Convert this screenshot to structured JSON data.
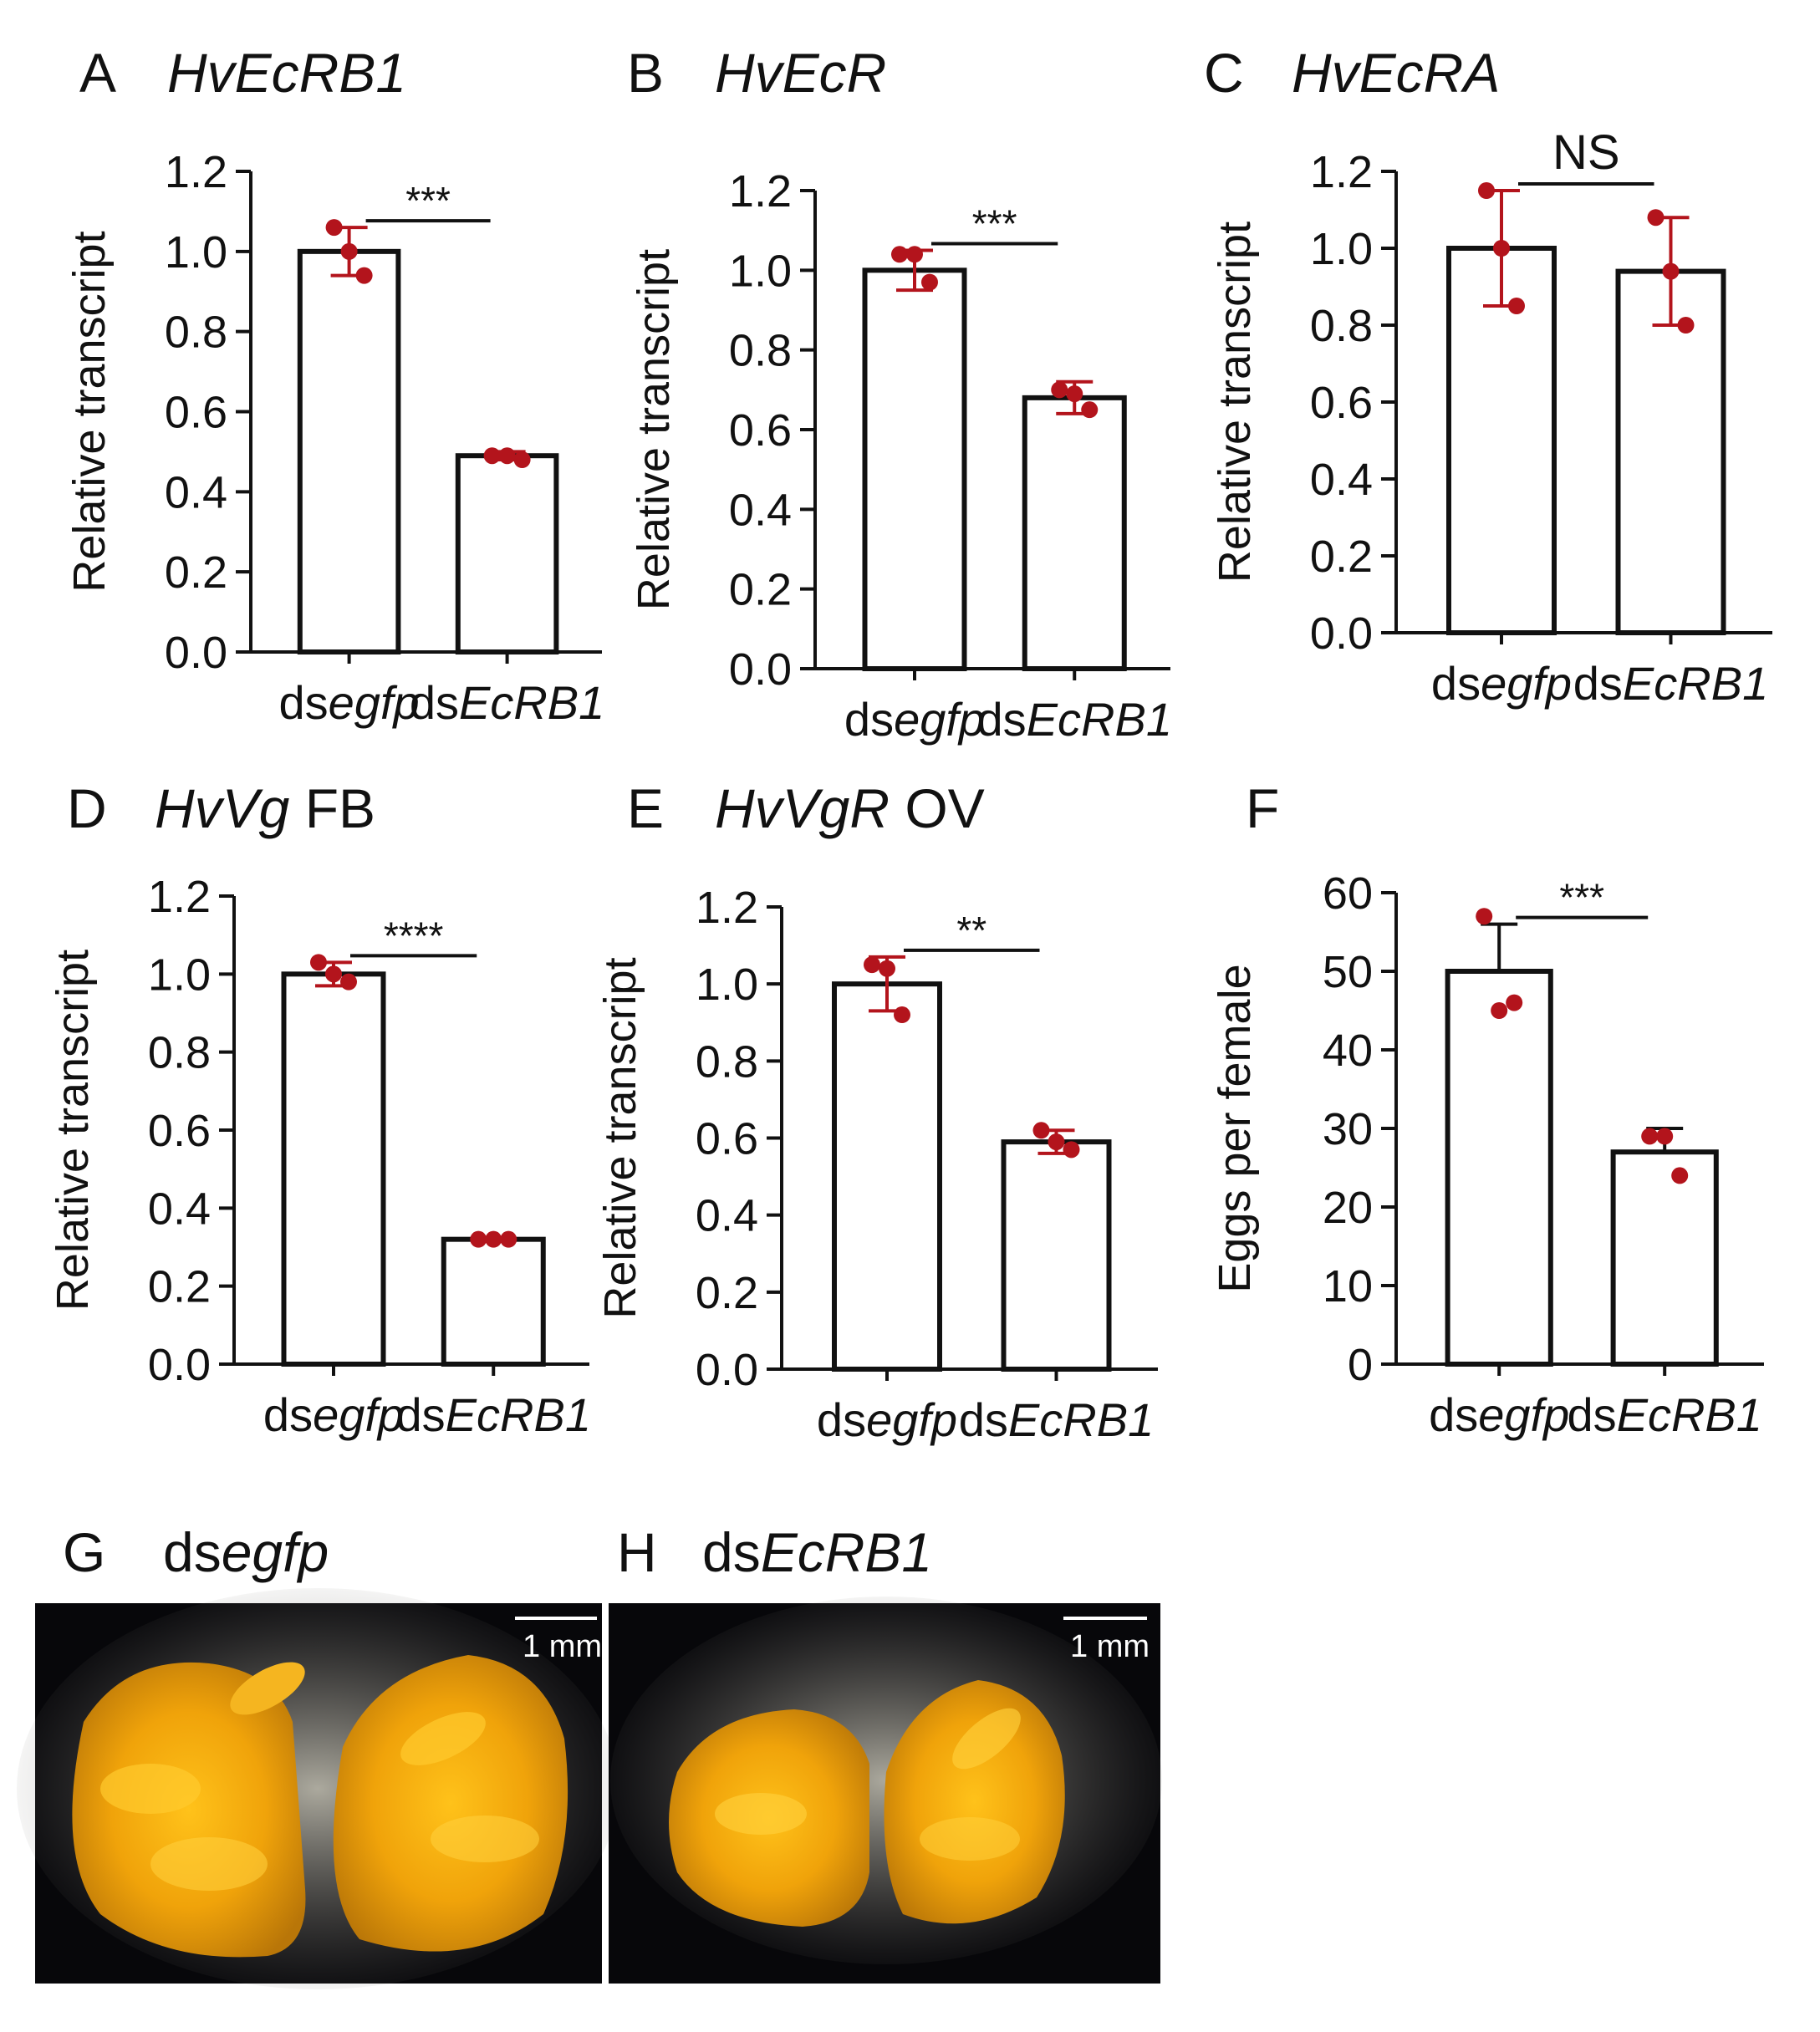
{
  "colors": {
    "point": "#b3141c",
    "bar_fill": "#ffffff",
    "bar_stroke": "#111111",
    "photo_bg": "#07070a",
    "ovary": "#f2a70c"
  },
  "chart_data": [
    {
      "panel": "A",
      "gene": "HvEcRB1",
      "gene_suffix": "",
      "type": "bar",
      "ylabel": "Relative transcript",
      "ylim": [
        0,
        1.2
      ],
      "yticks": [
        "0.0",
        "0.2",
        "0.4",
        "0.6",
        "0.8",
        "1.0",
        "1.2"
      ],
      "categories": [
        {
          "prefix": "ds",
          "italic": "egfp"
        },
        {
          "prefix": "ds",
          "italic": "EcRB1"
        }
      ],
      "values": [
        1.0,
        0.49
      ],
      "errors": [
        0.06,
        0.01
      ],
      "points": [
        [
          1.06,
          1.0,
          0.94
        ],
        [
          0.49,
          0.49,
          0.48
        ]
      ],
      "significance": "***"
    },
    {
      "panel": "B",
      "gene": "HvEcR",
      "gene_suffix": "",
      "type": "bar",
      "ylabel": "Relative transcript",
      "ylim": [
        0,
        1.2
      ],
      "yticks": [
        "0.0",
        "0.2",
        "0.4",
        "0.6",
        "0.8",
        "1.0",
        "1.2"
      ],
      "categories": [
        {
          "prefix": "ds",
          "italic": "egfp"
        },
        {
          "prefix": "ds",
          "italic": "EcRB1"
        }
      ],
      "values": [
        1.0,
        0.68
      ],
      "errors": [
        0.05,
        0.04
      ],
      "points": [
        [
          1.04,
          1.04,
          0.97
        ],
        [
          0.7,
          0.69,
          0.65
        ]
      ],
      "significance": "***"
    },
    {
      "panel": "C",
      "gene": "HvEcRA",
      "gene_suffix": "",
      "type": "bar",
      "ylabel": "Relative transcript",
      "ylim": [
        0,
        1.2
      ],
      "yticks": [
        "0.0",
        "0.2",
        "0.4",
        "0.6",
        "0.8",
        "1.0",
        "1.2"
      ],
      "categories": [
        {
          "prefix": "ds",
          "italic": "egfp"
        },
        {
          "prefix": "ds",
          "italic": "EcRB1"
        }
      ],
      "values": [
        1.0,
        0.94
      ],
      "errors": [
        0.15,
        0.14
      ],
      "points": [
        [
          1.15,
          1.0,
          0.85
        ],
        [
          1.08,
          0.94,
          0.8
        ]
      ],
      "significance": "NS"
    },
    {
      "panel": "D",
      "gene": "HvVg",
      "gene_suffix": "FB",
      "type": "bar",
      "ylabel": "Relative transcript",
      "ylim": [
        0,
        1.2
      ],
      "yticks": [
        "0.0",
        "0.2",
        "0.4",
        "0.6",
        "0.8",
        "1.0",
        "1.2"
      ],
      "categories": [
        {
          "prefix": "ds",
          "italic": "egfp"
        },
        {
          "prefix": "ds",
          "italic": "EcRB1"
        }
      ],
      "values": [
        1.0,
        0.32
      ],
      "errors": [
        0.03,
        0.005
      ],
      "points": [
        [
          1.03,
          1.0,
          0.98
        ],
        [
          0.32,
          0.32,
          0.32
        ]
      ],
      "significance": "****"
    },
    {
      "panel": "E",
      "gene": "HvVgR",
      "gene_suffix": "OV",
      "type": "bar",
      "ylabel": "Relative transcript",
      "ylim": [
        0,
        1.2
      ],
      "yticks": [
        "0.0",
        "0.2",
        "0.4",
        "0.6",
        "0.8",
        "1.0",
        "1.2"
      ],
      "categories": [
        {
          "prefix": "ds",
          "italic": "egfp"
        },
        {
          "prefix": "ds",
          "italic": "EcRB1"
        }
      ],
      "values": [
        1.0,
        0.59
      ],
      "errors": [
        0.07,
        0.03
      ],
      "points": [
        [
          1.05,
          1.04,
          0.92
        ],
        [
          0.62,
          0.59,
          0.57
        ]
      ],
      "significance": "**"
    },
    {
      "panel": "F",
      "gene": "",
      "gene_suffix": "",
      "type": "bar",
      "ylabel": "Eggs per female",
      "ylim": [
        0,
        60
      ],
      "yticks": [
        "0",
        "10",
        "20",
        "30",
        "40",
        "50",
        "60"
      ],
      "categories": [
        {
          "prefix": "ds",
          "italic": "egfp"
        },
        {
          "prefix": "ds",
          "italic": "EcRB1"
        }
      ],
      "values": [
        50,
        27
      ],
      "errors": [
        6,
        3
      ],
      "points": [
        [
          57,
          45,
          46
        ],
        [
          29,
          29,
          24
        ]
      ],
      "significance": "***"
    }
  ],
  "photos": [
    {
      "panel": "G",
      "label_prefix": "ds",
      "label_italic": "egfp",
      "scale": "1 mm"
    },
    {
      "panel": "H",
      "label_prefix": "ds",
      "label_italic": "EcRB1",
      "scale": "1 mm"
    }
  ]
}
